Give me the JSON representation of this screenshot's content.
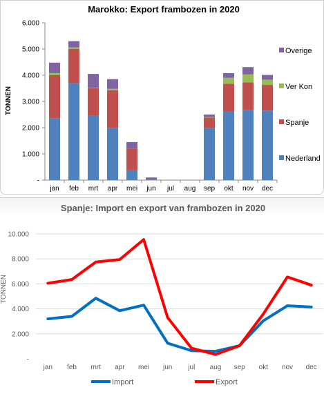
{
  "chart_data": [
    {
      "type": "bar",
      "stacked": true,
      "title": "Marokko: Export frambozen in 2020",
      "ylabel": "TONNEN",
      "xlabel": "",
      "ylim": [
        0,
        6000
      ],
      "y_ticks": [
        "-",
        "1.000",
        "2.000",
        "3.000",
        "4.000",
        "5.000",
        "6.000"
      ],
      "categories": [
        "jan",
        "feb",
        "mrt",
        "apr",
        "mei",
        "jun",
        "jul",
        "aug",
        "sep",
        "okt",
        "nov",
        "dec"
      ],
      "legend_position": "right",
      "grid": false,
      "series": [
        {
          "name": "Nederland",
          "color": "#4f81bd",
          "values": [
            2350,
            3700,
            2450,
            1980,
            380,
            20,
            0,
            0,
            1980,
            2620,
            2680,
            2650
          ]
        },
        {
          "name": "Spanje",
          "color": "#c0504d",
          "values": [
            1650,
            1300,
            1050,
            1450,
            820,
            20,
            0,
            0,
            400,
            1050,
            1050,
            980
          ]
        },
        {
          "name": "Ver Kon",
          "color": "#9bbb59",
          "values": [
            80,
            60,
            20,
            50,
            0,
            0,
            0,
            0,
            20,
            230,
            300,
            200
          ]
        },
        {
          "name": "Overige",
          "color": "#8064a2",
          "values": [
            400,
            240,
            530,
            370,
            250,
            60,
            0,
            0,
            100,
            180,
            280,
            180
          ]
        }
      ]
    },
    {
      "type": "line",
      "title": "Spanje: Import en export van frambozen in 2020",
      "ylabel": "TONNEN",
      "xlabel": "",
      "ylim": [
        0,
        10000
      ],
      "y_ticks": [
        "-",
        "2.000",
        "4.000",
        "6.000",
        "8.000",
        "10.000"
      ],
      "categories": [
        "jan",
        "feb",
        "mrt",
        "apr",
        "mei",
        "jun",
        "jul",
        "aug",
        "sep",
        "okt",
        "nov",
        "dec"
      ],
      "legend_position": "bottom",
      "grid": true,
      "series": [
        {
          "name": "Import",
          "color": "#0070c0",
          "values": [
            3200,
            3400,
            4850,
            3850,
            4300,
            1250,
            650,
            600,
            1050,
            3050,
            4250,
            4150
          ]
        },
        {
          "name": "Export",
          "color": "#ff0000",
          "values": [
            6050,
            6350,
            7750,
            7950,
            9550,
            3300,
            850,
            350,
            1050,
            3600,
            6550,
            5900
          ]
        }
      ]
    }
  ]
}
